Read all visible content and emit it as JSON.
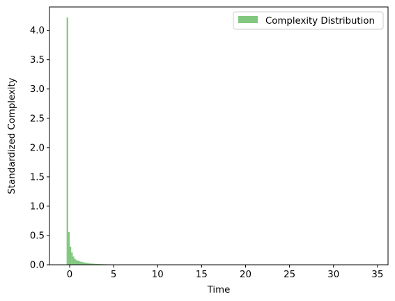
{
  "chart_data": {
    "type": "bar",
    "title": "",
    "xlabel": "Time",
    "ylabel": "Standardized Complexity",
    "xlim": [
      -2.3,
      36.2
    ],
    "ylim": [
      0,
      4.4
    ],
    "xticks": [
      0,
      5,
      10,
      15,
      20,
      25,
      30,
      35
    ],
    "yticks": [
      0.0,
      0.5,
      1.0,
      1.5,
      2.0,
      2.5,
      3.0,
      3.5,
      4.0
    ],
    "xtick_labels": [
      "0",
      "5",
      "10",
      "15",
      "20",
      "25",
      "30",
      "35"
    ],
    "ytick_labels": [
      "0.0",
      "0.5",
      "1.0",
      "1.5",
      "2.0",
      "2.5",
      "3.0",
      "3.5",
      "4.0"
    ],
    "grid": false,
    "legend_position": "top-right",
    "series": [
      {
        "name": "Complexity Distribution",
        "color": "#4daf4a",
        "opacity": 0.7,
        "bin_start": -0.35,
        "bin_width": 0.174,
        "values": [
          4.22,
          0.56,
          0.31,
          0.21,
          0.14,
          0.1,
          0.08,
          0.07,
          0.06,
          0.05,
          0.045,
          0.04,
          0.035,
          0.03,
          0.025,
          0.022,
          0.02,
          0.018,
          0.016,
          0.014,
          0.012,
          0.011,
          0.01,
          0.009,
          0.008,
          0.008,
          0.007,
          0.006,
          0.006,
          0.005,
          0.005,
          0.004,
          0.004,
          0.004,
          0.003,
          0.003,
          0.003,
          0.003,
          0.002,
          0.002,
          0.002,
          0.002,
          0.002,
          0.002,
          0.001,
          0.001,
          0.001,
          0.001,
          0.001,
          0.001,
          0.001,
          0.001,
          0.001,
          0.001,
          0.001,
          0.001,
          0.001,
          0.001,
          0.001,
          0.001
        ]
      }
    ]
  }
}
